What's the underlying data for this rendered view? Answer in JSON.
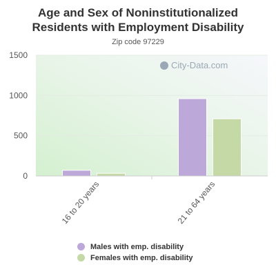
{
  "title": "Age and Sex of Noninstitutionalized Residents with Employment Disability",
  "subtitle": "Zip code 97229",
  "watermark": "City-Data.com",
  "chart_data": {
    "type": "bar",
    "categories": [
      "16 to 20 years",
      "21 to 64 years"
    ],
    "series": [
      {
        "name": "Males with emp. disability",
        "values": [
          70,
          960
        ],
        "color": "#bca8d9"
      },
      {
        "name": "Females with emp. disability",
        "values": [
          33,
          710
        ],
        "color": "#c4d9a6"
      }
    ],
    "ylim": [
      0,
      1500
    ],
    "yticks": [
      "0",
      "500",
      "1000",
      "1500"
    ],
    "grid": true,
    "legend": "bottom"
  }
}
